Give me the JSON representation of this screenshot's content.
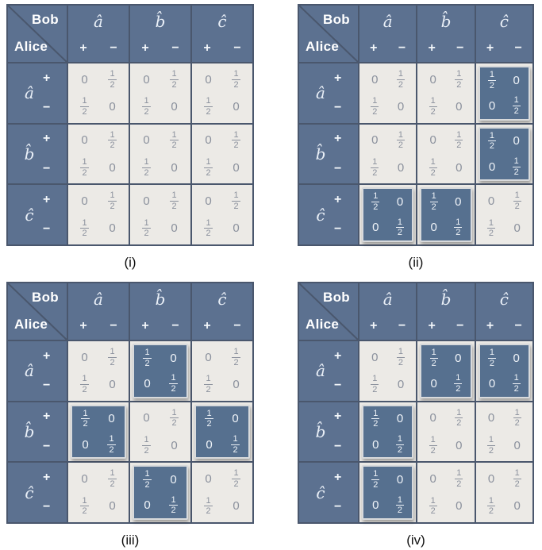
{
  "colors": {
    "header_blue": "#5C7190",
    "highlight_blue": "#56708F",
    "cell_bg": "#ECEAE6",
    "value_gray": "#8B919D",
    "light_text": "#EFF3F8",
    "border_dark": "#4A576D",
    "highlight_border": "#D8DADC",
    "caption_text": "#111111",
    "page_bg": "#FFFFFF"
  },
  "corner": {
    "top_label": "Bob",
    "bottom_label": "Alice"
  },
  "signs": {
    "plus": "+",
    "minus": "−"
  },
  "measurements": [
    "â",
    "b̂",
    "ĉ"
  ],
  "tables": [
    {
      "caption": "(i)",
      "blocks": [
        [
          {
            "highlighted": false,
            "cells": [
              [
                "0",
                "1/2"
              ],
              [
                "1/2",
                "0"
              ]
            ]
          },
          {
            "highlighted": false,
            "cells": [
              [
                "0",
                "1/2"
              ],
              [
                "1/2",
                "0"
              ]
            ]
          },
          {
            "highlighted": false,
            "cells": [
              [
                "0",
                "1/2"
              ],
              [
                "1/2",
                "0"
              ]
            ]
          }
        ],
        [
          {
            "highlighted": false,
            "cells": [
              [
                "0",
                "1/2"
              ],
              [
                "1/2",
                "0"
              ]
            ]
          },
          {
            "highlighted": false,
            "cells": [
              [
                "0",
                "1/2"
              ],
              [
                "1/2",
                "0"
              ]
            ]
          },
          {
            "highlighted": false,
            "cells": [
              [
                "0",
                "1/2"
              ],
              [
                "1/2",
                "0"
              ]
            ]
          }
        ],
        [
          {
            "highlighted": false,
            "cells": [
              [
                "0",
                "1/2"
              ],
              [
                "1/2",
                "0"
              ]
            ]
          },
          {
            "highlighted": false,
            "cells": [
              [
                "0",
                "1/2"
              ],
              [
                "1/2",
                "0"
              ]
            ]
          },
          {
            "highlighted": false,
            "cells": [
              [
                "0",
                "1/2"
              ],
              [
                "1/2",
                "0"
              ]
            ]
          }
        ]
      ]
    },
    {
      "caption": "(ii)",
      "blocks": [
        [
          {
            "highlighted": false,
            "cells": [
              [
                "0",
                "1/2"
              ],
              [
                "1/2",
                "0"
              ]
            ]
          },
          {
            "highlighted": false,
            "cells": [
              [
                "0",
                "1/2"
              ],
              [
                "1/2",
                "0"
              ]
            ]
          },
          {
            "highlighted": true,
            "cells": [
              [
                "1/2",
                "0"
              ],
              [
                "0",
                "1/2"
              ]
            ]
          }
        ],
        [
          {
            "highlighted": false,
            "cells": [
              [
                "0",
                "1/2"
              ],
              [
                "1/2",
                "0"
              ]
            ]
          },
          {
            "highlighted": false,
            "cells": [
              [
                "0",
                "1/2"
              ],
              [
                "1/2",
                "0"
              ]
            ]
          },
          {
            "highlighted": true,
            "cells": [
              [
                "1/2",
                "0"
              ],
              [
                "0",
                "1/2"
              ]
            ]
          }
        ],
        [
          {
            "highlighted": true,
            "cells": [
              [
                "1/2",
                "0"
              ],
              [
                "0",
                "1/2"
              ]
            ]
          },
          {
            "highlighted": true,
            "cells": [
              [
                "1/2",
                "0"
              ],
              [
                "0",
                "1/2"
              ]
            ]
          },
          {
            "highlighted": false,
            "cells": [
              [
                "0",
                "1/2"
              ],
              [
                "1/2",
                "0"
              ]
            ]
          }
        ]
      ]
    },
    {
      "caption": "(iii)",
      "blocks": [
        [
          {
            "highlighted": false,
            "cells": [
              [
                "0",
                "1/2"
              ],
              [
                "1/2",
                "0"
              ]
            ]
          },
          {
            "highlighted": true,
            "cells": [
              [
                "1/2",
                "0"
              ],
              [
                "0",
                "1/2"
              ]
            ]
          },
          {
            "highlighted": false,
            "cells": [
              [
                "0",
                "1/2"
              ],
              [
                "1/2",
                "0"
              ]
            ]
          }
        ],
        [
          {
            "highlighted": true,
            "cells": [
              [
                "1/2",
                "0"
              ],
              [
                "0",
                "1/2"
              ]
            ]
          },
          {
            "highlighted": false,
            "cells": [
              [
                "0",
                "1/2"
              ],
              [
                "1/2",
                "0"
              ]
            ]
          },
          {
            "highlighted": true,
            "cells": [
              [
                "1/2",
                "0"
              ],
              [
                "0",
                "1/2"
              ]
            ]
          }
        ],
        [
          {
            "highlighted": false,
            "cells": [
              [
                "0",
                "1/2"
              ],
              [
                "1/2",
                "0"
              ]
            ]
          },
          {
            "highlighted": true,
            "cells": [
              [
                "1/2",
                "0"
              ],
              [
                "0",
                "1/2"
              ]
            ]
          },
          {
            "highlighted": false,
            "cells": [
              [
                "0",
                "1/2"
              ],
              [
                "1/2",
                "0"
              ]
            ]
          }
        ]
      ]
    },
    {
      "caption": "(iv)",
      "blocks": [
        [
          {
            "highlighted": false,
            "cells": [
              [
                "0",
                "1/2"
              ],
              [
                "1/2",
                "0"
              ]
            ]
          },
          {
            "highlighted": true,
            "cells": [
              [
                "1/2",
                "0"
              ],
              [
                "0",
                "1/2"
              ]
            ]
          },
          {
            "highlighted": true,
            "cells": [
              [
                "1/2",
                "0"
              ],
              [
                "0",
                "1/2"
              ]
            ]
          }
        ],
        [
          {
            "highlighted": true,
            "cells": [
              [
                "1/2",
                "0"
              ],
              [
                "0",
                "1/2"
              ]
            ]
          },
          {
            "highlighted": false,
            "cells": [
              [
                "0",
                "1/2"
              ],
              [
                "1/2",
                "0"
              ]
            ]
          },
          {
            "highlighted": false,
            "cells": [
              [
                "0",
                "1/2"
              ],
              [
                "1/2",
                "0"
              ]
            ]
          }
        ],
        [
          {
            "highlighted": true,
            "cells": [
              [
                "1/2",
                "0"
              ],
              [
                "0",
                "1/2"
              ]
            ]
          },
          {
            "highlighted": false,
            "cells": [
              [
                "0",
                "1/2"
              ],
              [
                "1/2",
                "0"
              ]
            ]
          },
          {
            "highlighted": false,
            "cells": [
              [
                "0",
                "1/2"
              ],
              [
                "1/2",
                "0"
              ]
            ]
          }
        ]
      ]
    }
  ]
}
